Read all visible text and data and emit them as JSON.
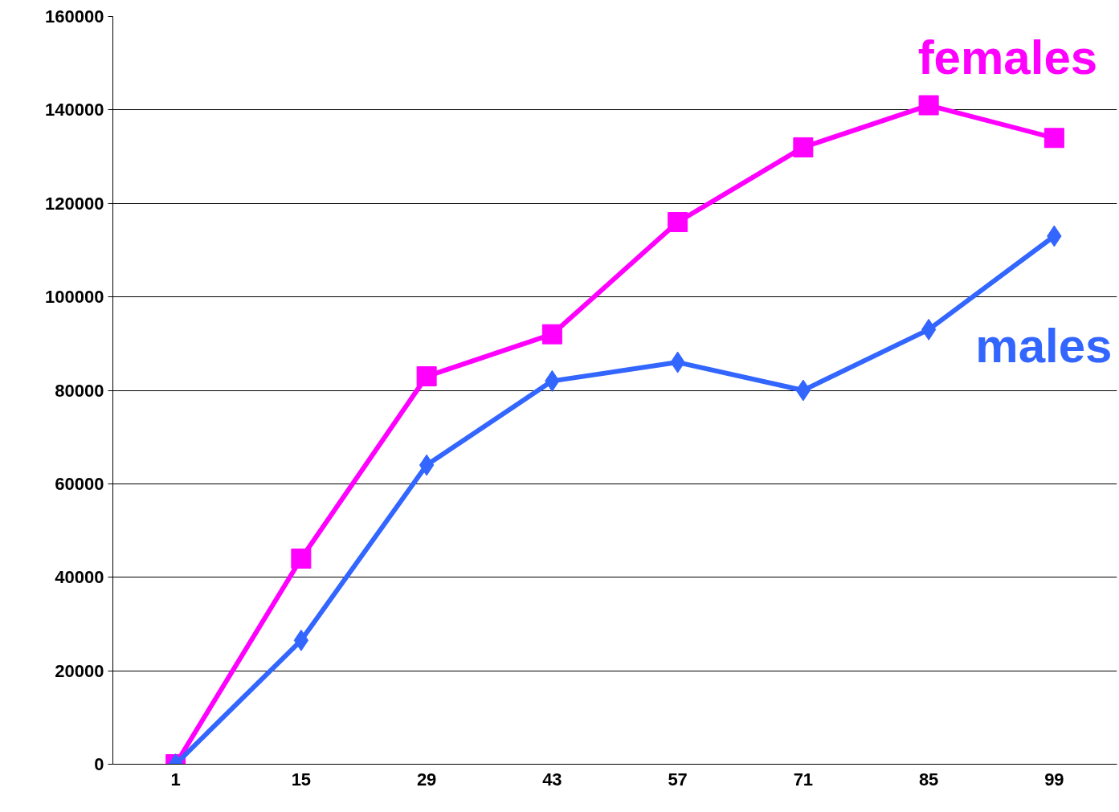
{
  "chart_data": {
    "type": "line",
    "categories": [
      "1",
      "15",
      "29",
      "43",
      "57",
      "71",
      "85",
      "99"
    ],
    "series": [
      {
        "name": "females",
        "color": "#ff00ff",
        "marker": "square",
        "values": [
          0,
          44000,
          83000,
          92000,
          116000,
          132000,
          141000,
          134000
        ]
      },
      {
        "name": "males",
        "color": "#3366ff",
        "marker": "diamond",
        "values": [
          0,
          26500,
          64000,
          82000,
          86000,
          80000,
          93000,
          113000
        ]
      }
    ],
    "ylim": [
      0,
      160000
    ],
    "yticks": [
      0,
      20000,
      40000,
      60000,
      80000,
      100000,
      120000,
      140000,
      160000
    ],
    "grid": "y",
    "line_style": "solid"
  }
}
